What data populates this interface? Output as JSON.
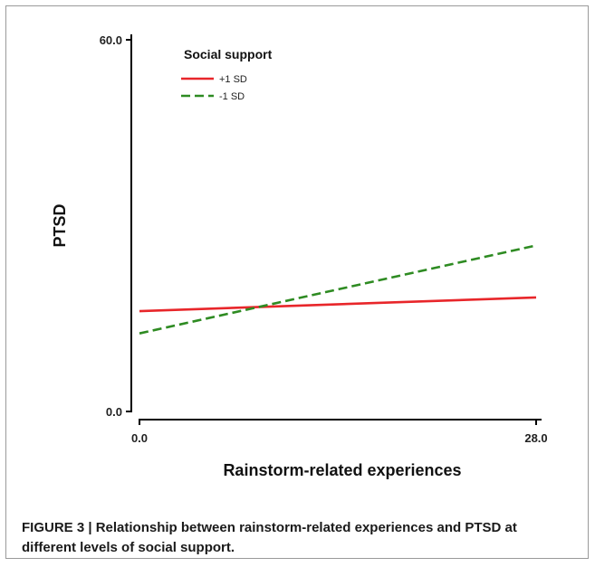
{
  "chart_data": {
    "type": "line",
    "xlabel": "Rainstorm-related experiences",
    "ylabel": "PTSD",
    "xlim": [
      0.0,
      28.0
    ],
    "ylim": [
      0.0,
      60.0
    ],
    "x_ticks": [
      "0.0",
      "28.0"
    ],
    "y_ticks": [
      "0.0",
      "60.0"
    ],
    "grid": false,
    "legend": {
      "title": "Social support",
      "placement": "top-left"
    },
    "series": [
      {
        "name": "+1 SD",
        "color": "#e8262a",
        "style": "solid",
        "x": [
          0.0,
          28.0
        ],
        "y": [
          16.2,
          18.4
        ]
      },
      {
        "name": "-1 SD",
        "color": "#2e8b22",
        "style": "dashed",
        "x": [
          0.0,
          28.0
        ],
        "y": [
          12.6,
          26.8
        ]
      }
    ]
  },
  "caption": "FIGURE 3 | Relationship between rainstorm-related experiences and PTSD at different levels of social support."
}
